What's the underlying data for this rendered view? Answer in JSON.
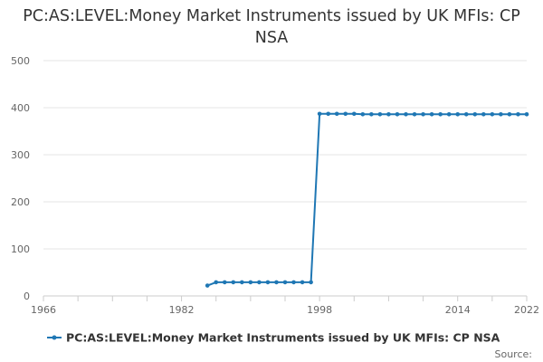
{
  "chart_data": {
    "type": "line",
    "title": "PC:AS:LEVEL:Money Market Instruments issued by UK MFIs: CP NSA",
    "xlabel": "",
    "ylabel": "",
    "xlim": [
      1966,
      2022
    ],
    "ylim": [
      0,
      500
    ],
    "x_ticks": [
      1966,
      1982,
      1998,
      2014,
      2022
    ],
    "y_ticks": [
      0,
      100,
      200,
      300,
      400,
      500
    ],
    "grid": "horizontal",
    "legend_position": "bottom",
    "credit": "Source:",
    "series": [
      {
        "name": "PC:AS:LEVEL:Money Market Instruments issued by UK MFIs: CP NSA",
        "color": "#1f77b4",
        "points": [
          [
            1985,
            22
          ],
          [
            1986,
            29
          ],
          [
            1987,
            29
          ],
          [
            1988,
            29
          ],
          [
            1989,
            29
          ],
          [
            1990,
            29
          ],
          [
            1991,
            29
          ],
          [
            1992,
            29
          ],
          [
            1993,
            29
          ],
          [
            1994,
            29
          ],
          [
            1995,
            29
          ],
          [
            1996,
            29
          ],
          [
            1997,
            29
          ],
          [
            1998,
            387
          ],
          [
            1999,
            387
          ],
          [
            2000,
            387
          ],
          [
            2001,
            387
          ],
          [
            2002,
            387
          ],
          [
            2003,
            386
          ],
          [
            2004,
            386
          ],
          [
            2005,
            386
          ],
          [
            2006,
            386
          ],
          [
            2007,
            386
          ],
          [
            2008,
            386
          ],
          [
            2009,
            386
          ],
          [
            2010,
            386
          ],
          [
            2011,
            386
          ],
          [
            2012,
            386
          ],
          [
            2013,
            386
          ],
          [
            2014,
            386
          ],
          [
            2015,
            386
          ],
          [
            2016,
            386
          ],
          [
            2017,
            386
          ],
          [
            2018,
            386
          ],
          [
            2019,
            386
          ],
          [
            2020,
            386
          ],
          [
            2021,
            386
          ],
          [
            2022,
            386
          ]
        ]
      }
    ]
  }
}
